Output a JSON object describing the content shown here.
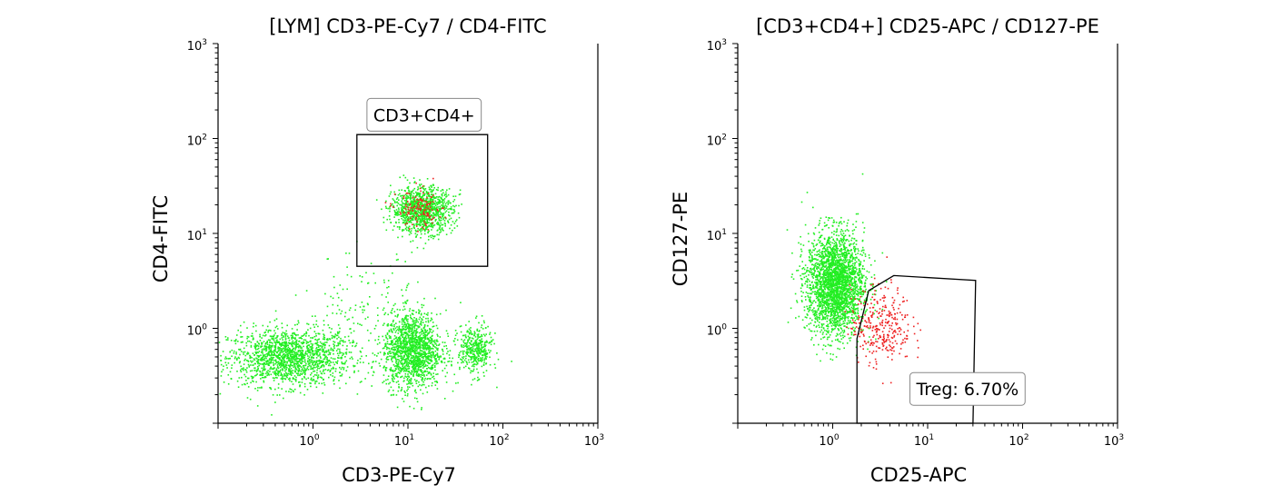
{
  "chart_data": [
    {
      "type": "scatter",
      "title": "[LYM] CD3-PE-Cy7 / CD4-FITC",
      "xlabel": "CD3-PE-Cy7",
      "ylabel": "CD4-FITC",
      "xscale": "log",
      "yscale": "log",
      "xlim": [
        0.1,
        1000
      ],
      "ylim": [
        0.1,
        1000
      ],
      "xticks": [
        {
          "base": "10",
          "exp": "0"
        },
        {
          "base": "10",
          "exp": "1"
        },
        {
          "base": "10",
          "exp": "2"
        },
        {
          "base": "10",
          "exp": "3"
        }
      ],
      "yticks": [
        {
          "base": "10",
          "exp": "0"
        },
        {
          "base": "10",
          "exp": "1"
        },
        {
          "base": "10",
          "exp": "2"
        },
        {
          "base": "10",
          "exp": "3"
        }
      ],
      "series_colors": [
        "#22ee22",
        "#ee2222"
      ],
      "clusters": [
        {
          "color": "#22ee22",
          "center": [
            0.55,
            0.5
          ],
          "spread": [
            0.32,
            0.15
          ],
          "count": 1600
        },
        {
          "color": "#22ee22",
          "center": [
            11,
            0.6
          ],
          "spread": [
            0.15,
            0.2
          ],
          "count": 1500
        },
        {
          "color": "#22ee22",
          "center": [
            50,
            0.6
          ],
          "spread": [
            0.09,
            0.13
          ],
          "count": 400
        },
        {
          "color": "#22ee22",
          "center": [
            14,
            18
          ],
          "spread": [
            0.16,
            0.12
          ],
          "count": 1100
        },
        {
          "color": "#22ee22",
          "center": [
            3,
            1.5
          ],
          "spread": [
            0.3,
            0.3
          ],
          "count": 140
        },
        {
          "color": "#ee2222",
          "center": [
            13,
            18
          ],
          "spread": [
            0.12,
            0.1
          ],
          "count": 130
        }
      ],
      "gates": [
        {
          "label": "CD3+CD4+",
          "shape": "rectangle",
          "points": [
            [
              2.9,
              4.5
            ],
            [
              69,
              4.5
            ],
            [
              69,
              110
            ],
            [
              2.9,
              110
            ]
          ],
          "label_pos": [
            3.7,
            170
          ]
        }
      ]
    },
    {
      "type": "scatter",
      "title": "[CD3+CD4+] CD25-APC / CD127-PE",
      "xlabel": "CD25-APC",
      "ylabel": "CD127-PE",
      "xscale": "log",
      "yscale": "log",
      "xlim": [
        0.1,
        1000
      ],
      "ylim": [
        0.1,
        1000
      ],
      "xticks": [
        {
          "base": "10",
          "exp": "0"
        },
        {
          "base": "10",
          "exp": "1"
        },
        {
          "base": "10",
          "exp": "2"
        },
        {
          "base": "10",
          "exp": "3"
        }
      ],
      "yticks": [
        {
          "base": "10",
          "exp": "0"
        },
        {
          "base": "10",
          "exp": "1"
        },
        {
          "base": "10",
          "exp": "2"
        },
        {
          "base": "10",
          "exp": "3"
        }
      ],
      "series_colors": [
        "#22ee22",
        "#ee2222"
      ],
      "clusters": [
        {
          "color": "#22ee22",
          "center": [
            1.05,
            3.0
          ],
          "spread": [
            0.15,
            0.27
          ],
          "count": 2600
        },
        {
          "color": "#ee2222",
          "center": [
            3.2,
            1.1
          ],
          "spread": [
            0.16,
            0.2
          ],
          "count": 320
        }
      ],
      "gates": [
        {
          "label": "Treg: 6.70%",
          "shape": "polygon",
          "points": [
            [
              1.8,
              0.1
            ],
            [
              1.8,
              0.78
            ],
            [
              2.4,
              2.5
            ],
            [
              4.4,
              3.6
            ],
            [
              32,
              3.2
            ],
            [
              30,
              0.1
            ]
          ],
          "label_pos": [
            6.5,
            0.22
          ]
        }
      ]
    }
  ]
}
